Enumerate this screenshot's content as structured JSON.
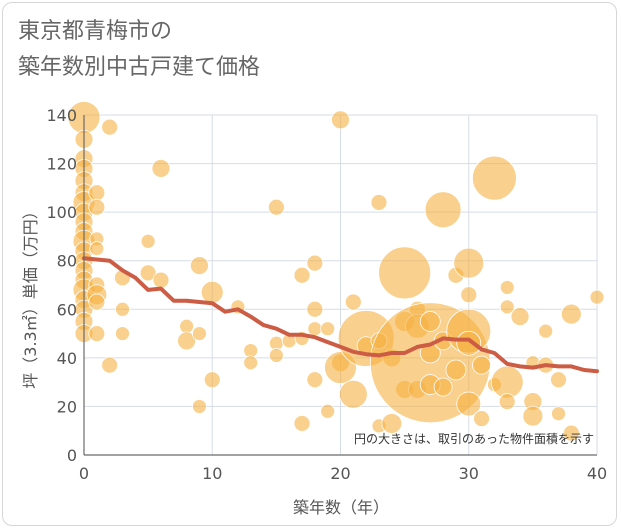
{
  "title_lines": [
    "東京都青梅市の",
    "築年数別中古戸建て価格"
  ],
  "chart_data": {
    "type": "scatter",
    "title": "東京都青梅市の 築年数別中古戸建て価格",
    "xlabel": "築年数（年）",
    "ylabel": "坪（3.3㎡）単価（万円）",
    "xlim": [
      0,
      40
    ],
    "ylim": [
      0,
      140
    ],
    "xticks": [
      0,
      10,
      20,
      30,
      40
    ],
    "yticks": [
      0,
      20,
      40,
      60,
      80,
      100,
      120,
      140
    ],
    "grid": true,
    "annotation": "円の大きさは、取引のあった物件面積を示す",
    "colors": {
      "bubble": "#f5b041",
      "trend": "#cd5c45",
      "grid": "#d5dde6",
      "axis": "#6b6b6b"
    },
    "series": [
      {
        "kind": "bubble",
        "points": [
          {
            "x": 0,
            "y": 139,
            "size": 16
          },
          {
            "x": 0,
            "y": 130,
            "size": 9
          },
          {
            "x": 0,
            "y": 122,
            "size": 9
          },
          {
            "x": 0,
            "y": 118,
            "size": 9
          },
          {
            "x": 0,
            "y": 113,
            "size": 9
          },
          {
            "x": 0,
            "y": 108,
            "size": 9
          },
          {
            "x": 0,
            "y": 104,
            "size": 11
          },
          {
            "x": 0,
            "y": 100,
            "size": 9
          },
          {
            "x": 0,
            "y": 96,
            "size": 9
          },
          {
            "x": 0,
            "y": 92,
            "size": 9
          },
          {
            "x": 0,
            "y": 88,
            "size": 11
          },
          {
            "x": 0,
            "y": 84,
            "size": 9
          },
          {
            "x": 0,
            "y": 80,
            "size": 9
          },
          {
            "x": 0,
            "y": 76,
            "size": 9
          },
          {
            "x": 0,
            "y": 72,
            "size": 9
          },
          {
            "x": 0,
            "y": 68,
            "size": 11
          },
          {
            "x": 0,
            "y": 64,
            "size": 9
          },
          {
            "x": 0,
            "y": 60,
            "size": 9
          },
          {
            "x": 0,
            "y": 55,
            "size": 9
          },
          {
            "x": 0,
            "y": 50,
            "size": 9
          },
          {
            "x": 1,
            "y": 108,
            "size": 8
          },
          {
            "x": 1,
            "y": 102,
            "size": 8
          },
          {
            "x": 1,
            "y": 89,
            "size": 7
          },
          {
            "x": 1,
            "y": 85,
            "size": 7
          },
          {
            "x": 1,
            "y": 70,
            "size": 8
          },
          {
            "x": 1,
            "y": 66,
            "size": 10
          },
          {
            "x": 1,
            "y": 63,
            "size": 8
          },
          {
            "x": 1,
            "y": 50,
            "size": 8
          },
          {
            "x": 2,
            "y": 135,
            "size": 8
          },
          {
            "x": 2,
            "y": 37,
            "size": 8
          },
          {
            "x": 3,
            "y": 73,
            "size": 8
          },
          {
            "x": 3,
            "y": 60,
            "size": 7
          },
          {
            "x": 3,
            "y": 50,
            "size": 7
          },
          {
            "x": 5,
            "y": 88,
            "size": 7
          },
          {
            "x": 5,
            "y": 75,
            "size": 8
          },
          {
            "x": 6,
            "y": 118,
            "size": 9
          },
          {
            "x": 6,
            "y": 72,
            "size": 8
          },
          {
            "x": 8,
            "y": 53,
            "size": 7
          },
          {
            "x": 8,
            "y": 47,
            "size": 9
          },
          {
            "x": 9,
            "y": 78,
            "size": 9
          },
          {
            "x": 9,
            "y": 50,
            "size": 7
          },
          {
            "x": 9,
            "y": 20,
            "size": 7
          },
          {
            "x": 10,
            "y": 67,
            "size": 11
          },
          {
            "x": 10,
            "y": 31,
            "size": 8
          },
          {
            "x": 12,
            "y": 61,
            "size": 7
          },
          {
            "x": 13,
            "y": 43,
            "size": 7
          },
          {
            "x": 13,
            "y": 38,
            "size": 7
          },
          {
            "x": 15,
            "y": 102,
            "size": 8
          },
          {
            "x": 15,
            "y": 46,
            "size": 7
          },
          {
            "x": 15,
            "y": 41,
            "size": 7
          },
          {
            "x": 16,
            "y": 47,
            "size": 7
          },
          {
            "x": 17,
            "y": 74,
            "size": 8
          },
          {
            "x": 17,
            "y": 48,
            "size": 7
          },
          {
            "x": 17,
            "y": 13,
            "size": 8
          },
          {
            "x": 18,
            "y": 79,
            "size": 8
          },
          {
            "x": 18,
            "y": 60,
            "size": 8
          },
          {
            "x": 18,
            "y": 52,
            "size": 7
          },
          {
            "x": 18,
            "y": 31,
            "size": 8
          },
          {
            "x": 19,
            "y": 52,
            "size": 7
          },
          {
            "x": 19,
            "y": 18,
            "size": 7
          },
          {
            "x": 20,
            "y": 138,
            "size": 9
          },
          {
            "x": 20,
            "y": 38,
            "size": 9
          },
          {
            "x": 20,
            "y": 36,
            "size": 16
          },
          {
            "x": 21,
            "y": 63,
            "size": 8
          },
          {
            "x": 21,
            "y": 25,
            "size": 14
          },
          {
            "x": 22,
            "y": 48,
            "size": 28
          },
          {
            "x": 22,
            "y": 45,
            "size": 9
          },
          {
            "x": 23,
            "y": 104,
            "size": 8
          },
          {
            "x": 23,
            "y": 47,
            "size": 8
          },
          {
            "x": 23,
            "y": 12,
            "size": 7
          },
          {
            "x": 24,
            "y": 40,
            "size": 9
          },
          {
            "x": 24,
            "y": 13,
            "size": 10
          },
          {
            "x": 25,
            "y": 75,
            "size": 26
          },
          {
            "x": 25,
            "y": 55,
            "size": 10
          },
          {
            "x": 25,
            "y": 27,
            "size": 9
          },
          {
            "x": 26,
            "y": 60,
            "size": 8
          },
          {
            "x": 26,
            "y": 53,
            "size": 12
          },
          {
            "x": 26,
            "y": 27,
            "size": 9
          },
          {
            "x": 27,
            "y": 38,
            "size": 60
          },
          {
            "x": 27,
            "y": 55,
            "size": 10
          },
          {
            "x": 27,
            "y": 42,
            "size": 10
          },
          {
            "x": 27,
            "y": 29,
            "size": 10
          },
          {
            "x": 28,
            "y": 101,
            "size": 18
          },
          {
            "x": 28,
            "y": 47,
            "size": 9
          },
          {
            "x": 28,
            "y": 28,
            "size": 9
          },
          {
            "x": 29,
            "y": 74,
            "size": 8
          },
          {
            "x": 29,
            "y": 35,
            "size": 10
          },
          {
            "x": 30,
            "y": 79,
            "size": 15
          },
          {
            "x": 30,
            "y": 66,
            "size": 8
          },
          {
            "x": 30,
            "y": 51,
            "size": 22
          },
          {
            "x": 30,
            "y": 46,
            "size": 12
          },
          {
            "x": 30,
            "y": 21,
            "size": 12
          },
          {
            "x": 31,
            "y": 37,
            "size": 9
          },
          {
            "x": 31,
            "y": 15,
            "size": 8
          },
          {
            "x": 32,
            "y": 114,
            "size": 22
          },
          {
            "x": 32,
            "y": 29,
            "size": 7
          },
          {
            "x": 33,
            "y": 69,
            "size": 7
          },
          {
            "x": 33,
            "y": 61,
            "size": 7
          },
          {
            "x": 33,
            "y": 30,
            "size": 16
          },
          {
            "x": 33,
            "y": 22,
            "size": 8
          },
          {
            "x": 34,
            "y": 57,
            "size": 9
          },
          {
            "x": 35,
            "y": 38,
            "size": 7
          },
          {
            "x": 35,
            "y": 22,
            "size": 9
          },
          {
            "x": 35,
            "y": 16,
            "size": 10
          },
          {
            "x": 36,
            "y": 51,
            "size": 7
          },
          {
            "x": 36,
            "y": 37,
            "size": 8
          },
          {
            "x": 37,
            "y": 31,
            "size": 8
          },
          {
            "x": 37,
            "y": 17,
            "size": 7
          },
          {
            "x": 38,
            "y": 58,
            "size": 10
          },
          {
            "x": 38,
            "y": 9,
            "size": 8
          },
          {
            "x": 40,
            "y": 65,
            "size": 7
          }
        ]
      },
      {
        "kind": "line",
        "x": [
          0,
          1,
          2,
          3,
          4,
          5,
          6,
          7,
          8,
          9,
          10,
          11,
          12,
          13,
          14,
          15,
          16,
          17,
          18,
          19,
          20,
          21,
          22,
          23,
          24,
          25,
          26,
          27,
          28,
          29,
          30,
          31,
          32,
          33,
          34,
          35,
          36,
          37,
          38,
          39,
          40
        ],
        "y": [
          81,
          80.5,
          80,
          76,
          73,
          68,
          68.5,
          63.5,
          63.5,
          63,
          62.5,
          59,
          60,
          57,
          53.5,
          52,
          49.5,
          49.5,
          48.5,
          46.5,
          44.5,
          42.5,
          41.5,
          41,
          42,
          42,
          44.5,
          45.5,
          48,
          47.5,
          47.5,
          43.5,
          42,
          37.5,
          36.5,
          36,
          37,
          36.5,
          36.5,
          35,
          34.5
        ]
      }
    ]
  }
}
